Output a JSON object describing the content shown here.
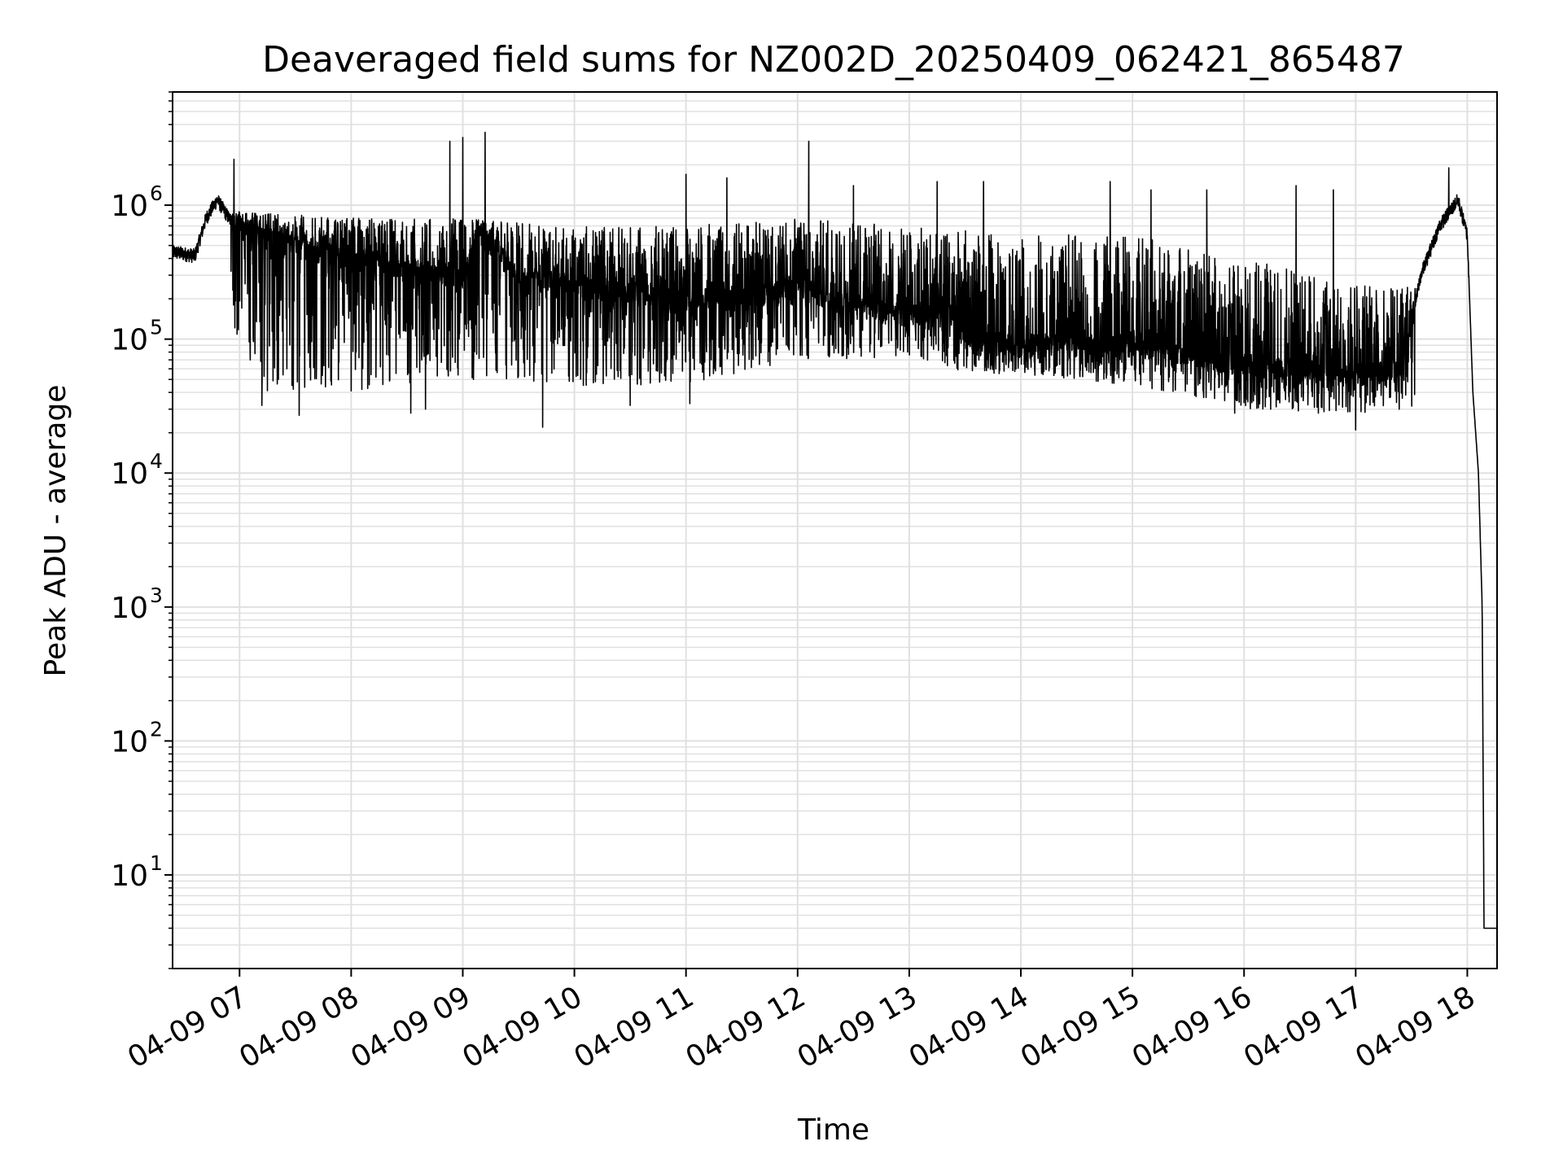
{
  "chart_data": {
    "type": "line",
    "title": "Deaveraged field sums for NZ002D_20250409_062421_865487",
    "xlabel": "Time",
    "ylabel": "Peak ADU - average",
    "y_scale": "log",
    "ylim": [
      2,
      7000000
    ],
    "xlim": [
      "2025-04-09 06:24",
      "2025-04-09 18:16"
    ],
    "grid": true,
    "line_color": "#000000",
    "grid_color": "#e0e0e0",
    "x_ticks": [
      {
        "t": "2025-04-09 07:00",
        "label": "04-09 07"
      },
      {
        "t": "2025-04-09 08:00",
        "label": "04-09 08"
      },
      {
        "t": "2025-04-09 09:00",
        "label": "04-09 09"
      },
      {
        "t": "2025-04-09 10:00",
        "label": "04-09 10"
      },
      {
        "t": "2025-04-09 11:00",
        "label": "04-09 11"
      },
      {
        "t": "2025-04-09 12:00",
        "label": "04-09 12"
      },
      {
        "t": "2025-04-09 13:00",
        "label": "04-09 13"
      },
      {
        "t": "2025-04-09 14:00",
        "label": "04-09 14"
      },
      {
        "t": "2025-04-09 15:00",
        "label": "04-09 15"
      },
      {
        "t": "2025-04-09 16:00",
        "label": "04-09 16"
      },
      {
        "t": "2025-04-09 17:00",
        "label": "04-09 17"
      },
      {
        "t": "2025-04-09 18:00",
        "label": "04-09 18"
      }
    ],
    "y_ticks": [
      {
        "value": 10,
        "base": "10",
        "exp": "1"
      },
      {
        "value": 100,
        "base": "10",
        "exp": "2"
      },
      {
        "value": 1000,
        "base": "10",
        "exp": "3"
      },
      {
        "value": 10000,
        "base": "10",
        "exp": "4"
      },
      {
        "value": 100000,
        "base": "10",
        "exp": "5"
      },
      {
        "value": 1000000,
        "base": "10",
        "exp": "6"
      }
    ],
    "series": [
      {
        "baseline": [
          [
            "2025-04-09 06:24",
            450000
          ],
          [
            "2025-04-09 06:36",
            420000
          ],
          [
            "2025-04-09 06:42",
            800000
          ],
          [
            "2025-04-09 06:48",
            1100000
          ],
          [
            "2025-04-09 06:57",
            700000
          ],
          [
            "2025-04-09 07:30",
            500000
          ],
          [
            "2025-04-09 08:00",
            400000
          ],
          [
            "2025-04-09 08:30",
            330000
          ],
          [
            "2025-04-09 09:00",
            300000
          ],
          [
            "2025-04-09 09:10",
            600000
          ],
          [
            "2025-04-09 09:30",
            300000
          ],
          [
            "2025-04-09 10:00",
            250000
          ],
          [
            "2025-04-09 10:30",
            220000
          ],
          [
            "2025-04-09 11:00",
            200000
          ],
          [
            "2025-04-09 11:30",
            200000
          ],
          [
            "2025-04-09 12:00",
            250000
          ],
          [
            "2025-04-09 12:30",
            180000
          ],
          [
            "2025-04-09 13:00",
            150000
          ],
          [
            "2025-04-09 13:20",
            180000
          ],
          [
            "2025-04-09 13:30",
            100000
          ],
          [
            "2025-04-09 14:00",
            90000
          ],
          [
            "2025-04-09 14:30",
            95000
          ],
          [
            "2025-04-09 15:00",
            90000
          ],
          [
            "2025-04-09 15:30",
            80000
          ],
          [
            "2025-04-09 16:00",
            65000
          ],
          [
            "2025-04-09 16:30",
            60000
          ],
          [
            "2025-04-09 17:00",
            55000
          ],
          [
            "2025-04-09 17:25",
            60000
          ],
          [
            "2025-04-09 17:35",
            300000
          ],
          [
            "2025-04-09 17:45",
            700000
          ],
          [
            "2025-04-09 17:55",
            1100000
          ],
          [
            "2025-04-09 18:00",
            600000
          ],
          [
            "2025-04-09 18:03",
            40000
          ],
          [
            "2025-04-09 18:06",
            10000
          ],
          [
            "2025-04-09 18:08",
            1000
          ],
          [
            "2025-04-09 18:09",
            4
          ],
          [
            "2025-04-09 18:16",
            4
          ]
        ],
        "upper_envelope": [
          [
            "2025-04-09 06:24",
            600000
          ],
          [
            "2025-04-09 06:57",
            900000
          ],
          [
            "2025-04-09 08:00",
            800000
          ],
          [
            "2025-04-09 09:00",
            800000
          ],
          [
            "2025-04-09 10:00",
            700000
          ],
          [
            "2025-04-09 11:00",
            700000
          ],
          [
            "2025-04-09 12:00",
            800000
          ],
          [
            "2025-04-09 13:00",
            700000
          ],
          [
            "2025-04-09 14:00",
            600000
          ],
          [
            "2025-04-09 15:00",
            600000
          ],
          [
            "2025-04-09 16:00",
            400000
          ],
          [
            "2025-04-09 17:00",
            250000
          ],
          [
            "2025-04-09 17:30",
            250000
          ]
        ],
        "lower_envelope": [
          [
            "2025-04-09 06:24",
            350000
          ],
          [
            "2025-04-09 06:57",
            120000
          ],
          [
            "2025-04-09 07:10",
            40000
          ],
          [
            "2025-04-09 08:00",
            40000
          ],
          [
            "2025-04-09 09:00",
            50000
          ],
          [
            "2025-04-09 10:00",
            45000
          ],
          [
            "2025-04-09 11:00",
            45000
          ],
          [
            "2025-04-09 12:00",
            70000
          ],
          [
            "2025-04-09 13:00",
            70000
          ],
          [
            "2025-04-09 13:30",
            55000
          ],
          [
            "2025-04-09 14:00",
            55000
          ],
          [
            "2025-04-09 15:00",
            45000
          ],
          [
            "2025-04-09 15:45",
            35000
          ],
          [
            "2025-04-09 16:00",
            30000
          ],
          [
            "2025-04-09 17:00",
            28000
          ],
          [
            "2025-04-09 17:30",
            30000
          ]
        ],
        "peaks": [
          [
            "2025-04-09 06:57",
            2200000
          ],
          [
            "2025-04-09 08:53",
            3000000
          ],
          [
            "2025-04-09 09:00",
            3200000
          ],
          [
            "2025-04-09 09:12",
            3500000
          ],
          [
            "2025-04-09 11:00",
            1700000
          ],
          [
            "2025-04-09 11:22",
            1600000
          ],
          [
            "2025-04-09 12:06",
            3000000
          ],
          [
            "2025-04-09 12:30",
            1400000
          ],
          [
            "2025-04-09 13:15",
            1500000
          ],
          [
            "2025-04-09 13:40",
            1500000
          ],
          [
            "2025-04-09 14:48",
            1500000
          ],
          [
            "2025-04-09 15:10",
            1300000
          ],
          [
            "2025-04-09 15:40",
            1300000
          ],
          [
            "2025-04-09 16:28",
            1400000
          ],
          [
            "2025-04-09 16:48",
            1300000
          ],
          [
            "2025-04-09 17:50",
            1900000
          ]
        ],
        "dips": [
          [
            "2025-04-09 07:12",
            32000
          ],
          [
            "2025-04-09 07:32",
            27000
          ],
          [
            "2025-04-09 08:32",
            28000
          ],
          [
            "2025-04-09 08:40",
            30000
          ],
          [
            "2025-04-09 09:43",
            22000
          ],
          [
            "2025-04-09 10:30",
            32000
          ],
          [
            "2025-04-09 11:02",
            33000
          ],
          [
            "2025-04-09 15:55",
            28000
          ],
          [
            "2025-04-09 16:40",
            28000
          ],
          [
            "2025-04-09 17:00",
            21000
          ]
        ]
      }
    ]
  }
}
